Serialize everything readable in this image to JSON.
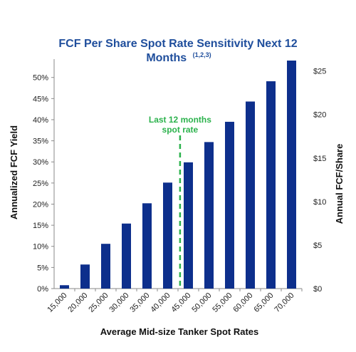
{
  "chart_data": {
    "type": "bar",
    "title_line1": "FCF Per Share Spot Rate Sensitivity Next 12",
    "title_line2": "Months",
    "title_superscript": "(1,2,3)",
    "xlabel": "Average Mid-size Tanker Spot Rates",
    "ylabel_left": "Annualized FCF Yield",
    "ylabel_right": "Annual FCF/Share",
    "categories": [
      "15,000",
      "20,000",
      "25,000",
      "30,000",
      "35,000",
      "40,000",
      "45,000",
      "50,000",
      "55,000",
      "60,000",
      "65,000",
      "70,000"
    ],
    "values": [
      0.8,
      5.7,
      10.6,
      15.4,
      20.2,
      25.1,
      29.9,
      34.7,
      39.5,
      44.3,
      49.1,
      54.0
    ],
    "y_left_ticks": [
      "0%",
      "5%",
      "10%",
      "15%",
      "20%",
      "25%",
      "30%",
      "35%",
      "40%",
      "45%",
      "50%"
    ],
    "y_left_range": [
      0,
      54
    ],
    "y_right_ticks": [
      "$0",
      "$5",
      "$10",
      "$15",
      "$20",
      "$25"
    ],
    "y_right_range": [
      0,
      26.2
    ],
    "annotation": {
      "line1": "Last 12 months",
      "line2": "spot rate",
      "x_value": 43000
    },
    "grid": false,
    "colors": {
      "bar": "#0d2f8c",
      "title": "#1f4e9c",
      "annotation": "#2bb24c"
    }
  }
}
